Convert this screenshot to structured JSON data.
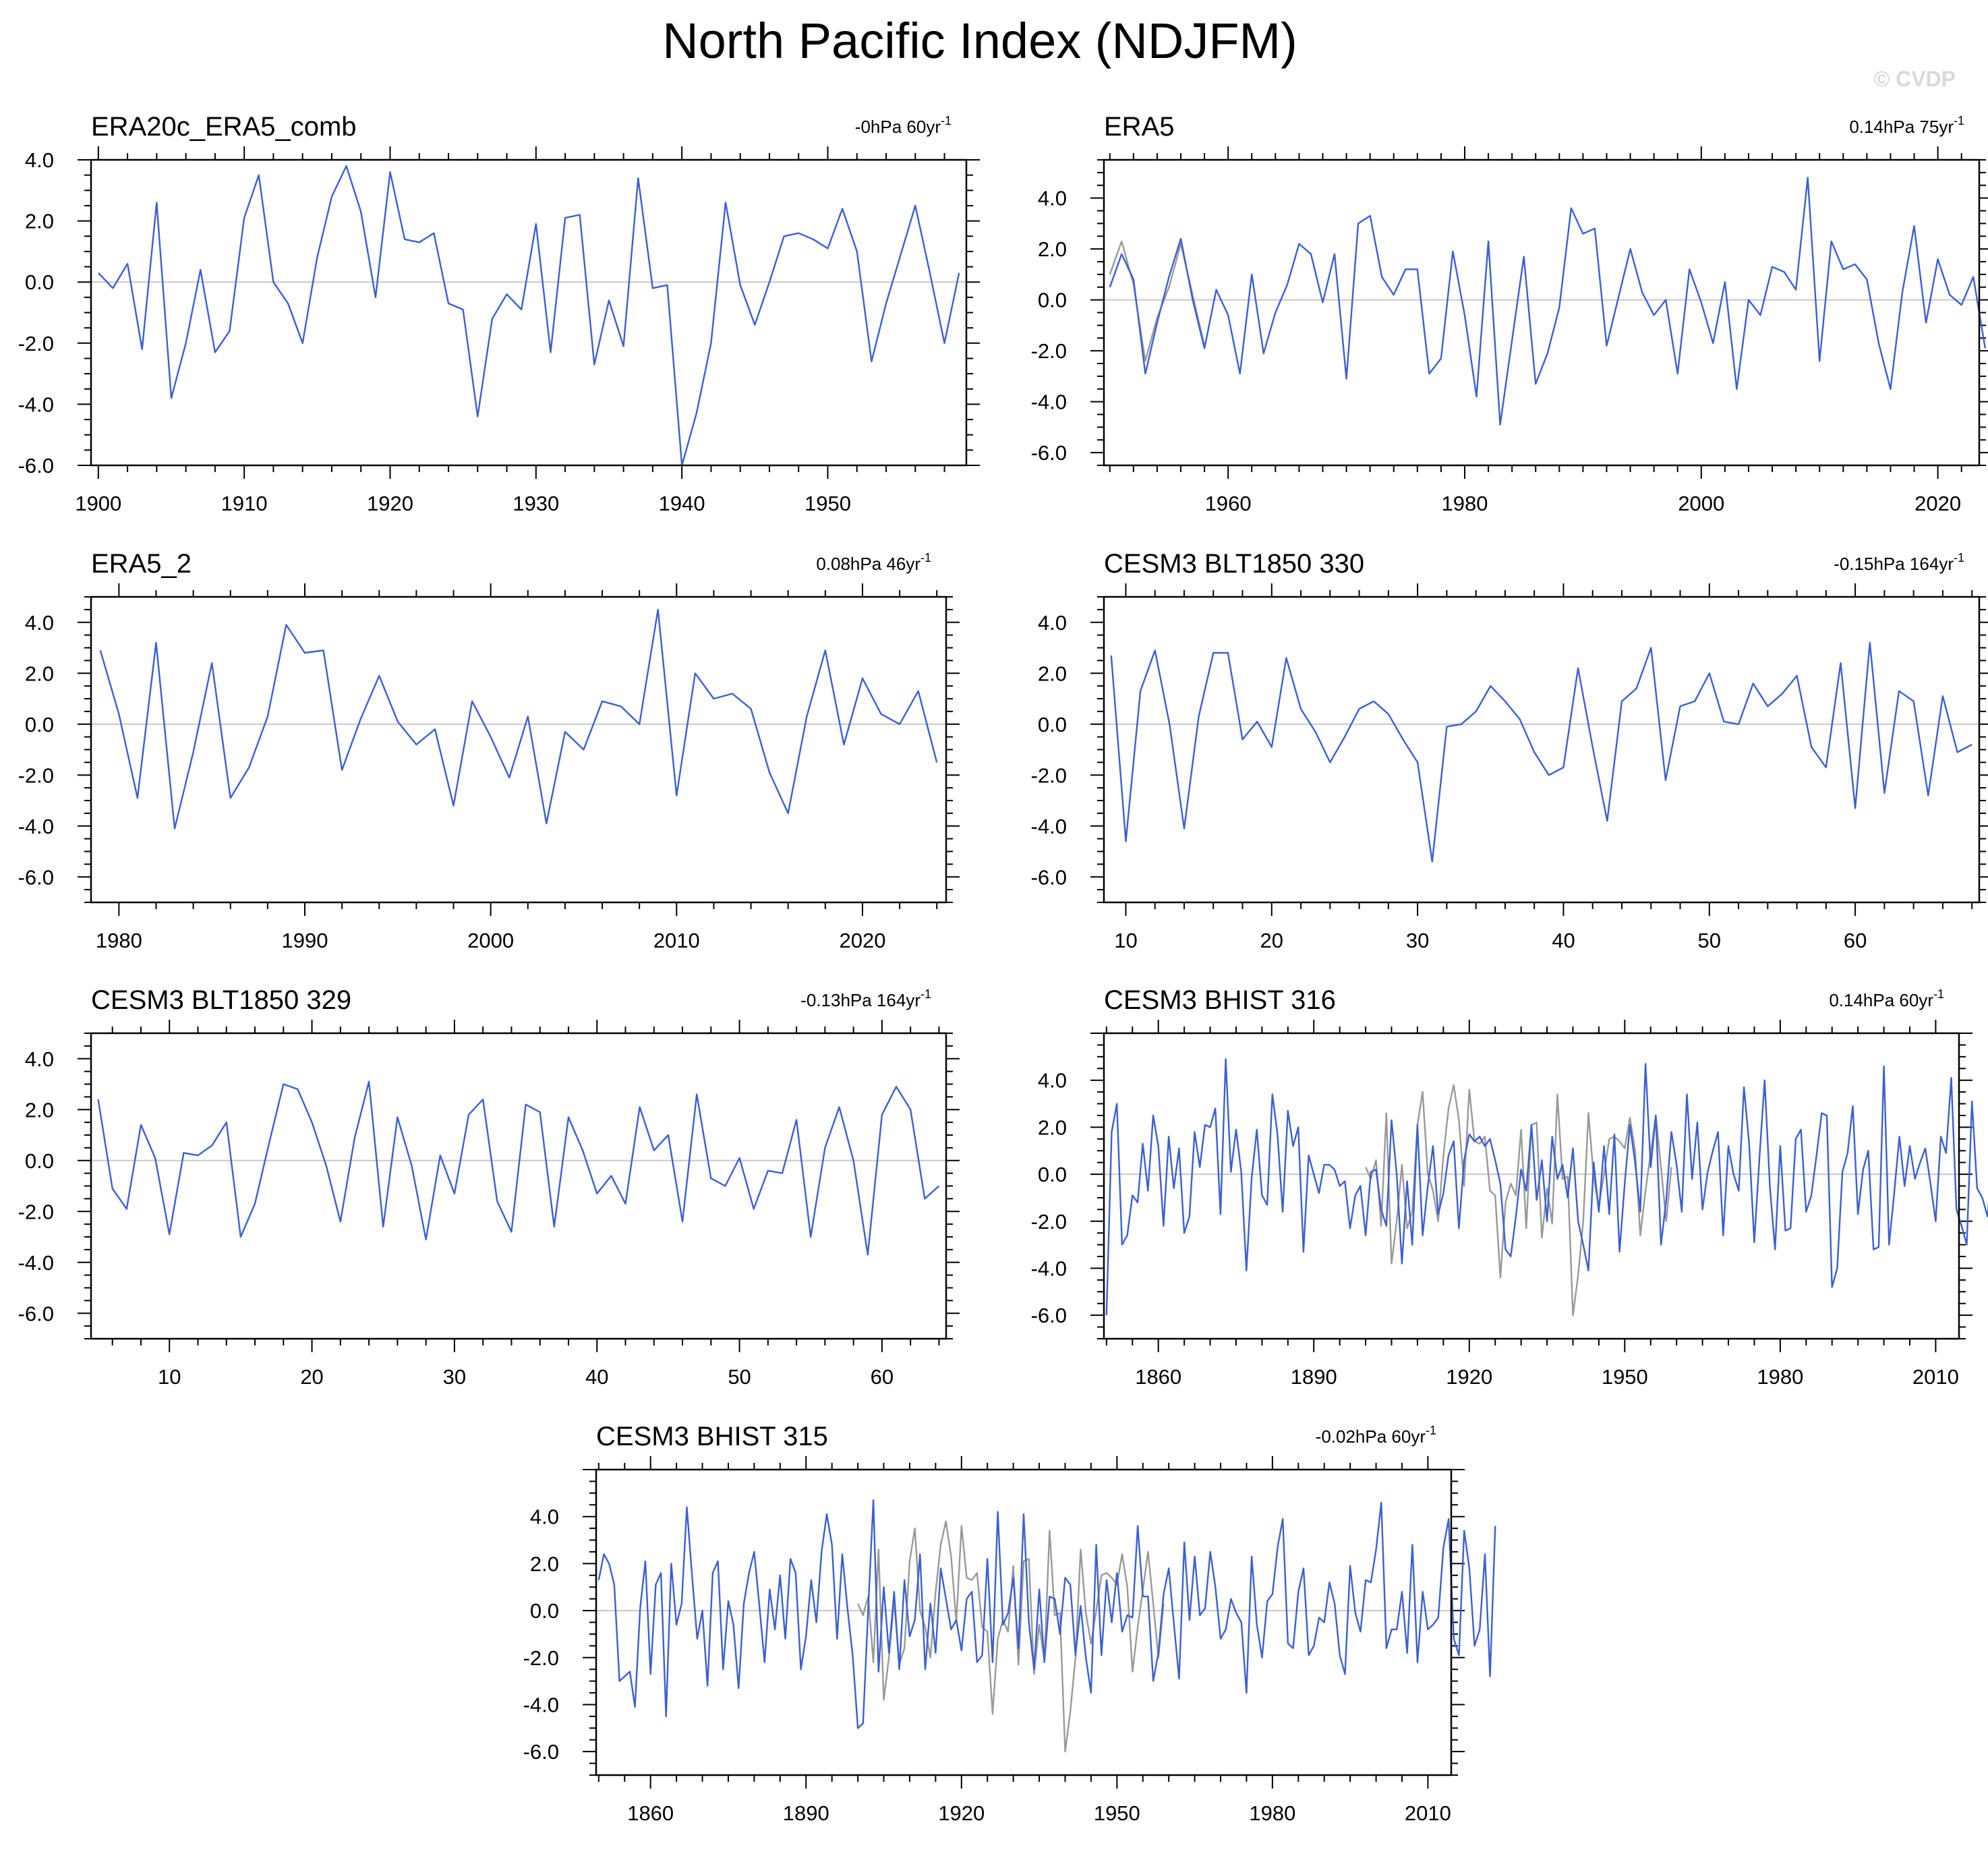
{
  "title": "North Pacific Index (NDJFM)",
  "watermark": "© CVDP",
  "colors": {
    "primary": "#3c5fd2",
    "secondary": "#999999",
    "zero_line": "#c8c8c8",
    "frame": "#000000"
  },
  "chart_data": [
    {
      "type": "line",
      "title": "ERA20c_ERA5_comb",
      "trend": {
        "value": "-0hPa 60yr",
        "exp": "-1"
      },
      "xlim": [
        1899.5,
        1959.5
      ],
      "ylim": [
        -6,
        4
      ],
      "xticks": [
        1900,
        1910,
        1920,
        1930,
        1940,
        1950
      ],
      "yticks": [
        4,
        2,
        0,
        -2,
        -4,
        -6
      ],
      "yticklabels": [
        "4.0",
        "2.0",
        "0.0",
        "-2.0",
        "-4.0",
        "-6.0"
      ],
      "x_start": 1900,
      "series": [
        {
          "values": [
            0.3,
            -0.2,
            0.6,
            -2.2,
            2.6,
            -3.8,
            -2.0,
            0.4,
            -2.3,
            -1.6,
            2.1,
            3.5,
            0.0,
            -0.7,
            -2.0,
            0.8,
            2.8,
            3.8,
            2.3,
            -0.5,
            3.6,
            1.4,
            1.3,
            1.6,
            -0.7,
            -0.9,
            -4.4,
            -1.2,
            -0.4,
            -0.9,
            1.9,
            -2.3,
            2.1,
            2.2,
            -2.7,
            -0.6,
            -2.1,
            3.4,
            -0.2,
            -0.1,
            -6.0,
            -4.3,
            -2.0,
            2.6,
            -0.1,
            -1.4,
            0.0,
            1.5,
            1.6,
            1.4,
            1.1,
            2.4,
            1.0,
            -2.6,
            -0.7,
            0.9,
            2.5,
            0.3,
            -2.0,
            0.3
          ]
        }
      ]
    },
    {
      "type": "line",
      "title": "ERA5",
      "trend": {
        "value": "0.14hPa 75yr",
        "exp": "-1"
      },
      "xlim": [
        1949.5,
        2023.5
      ],
      "ylim": [
        -6.5,
        5.5
      ],
      "xticks": [
        1960,
        1980,
        2000,
        2020
      ],
      "yticks": [
        4,
        2,
        0,
        -2,
        -4,
        -6
      ],
      "yticklabels": [
        "4.0",
        "2.0",
        "0.0",
        "-2.0",
        "-4.0",
        "-6.0"
      ],
      "x_start": 1950,
      "series": [
        {
          "values": [
            0.5,
            1.8,
            0.8,
            -2.9,
            -0.9,
            0.9,
            2.4,
            0.0,
            -1.9,
            0.4,
            -0.6,
            -2.9,
            1.0,
            -2.1,
            -0.5,
            0.6,
            2.2,
            1.8,
            -0.1,
            1.8,
            -3.1,
            3.0,
            3.3,
            0.9,
            0.2,
            1.2,
            1.2,
            -2.9,
            -2.3,
            1.9,
            -0.6,
            -3.8,
            2.3,
            -4.9,
            -1.6,
            1.7,
            -3.3,
            -2.1,
            -0.3,
            3.6,
            2.6,
            2.8,
            -1.8,
            0.1,
            2.0,
            0.3,
            -0.6,
            0.0,
            -2.9,
            1.2,
            -0.1,
            -1.7,
            0.7,
            -3.5,
            0.0,
            -0.6,
            1.3,
            1.1,
            0.4,
            4.8,
            -2.4,
            2.3,
            1.2,
            1.4,
            0.8,
            -1.7,
            -3.5,
            0.3,
            2.9,
            -0.9,
            1.6,
            0.2,
            -0.2,
            0.9,
            -1.9
          ]
        },
        {
          "values": [
            1.0,
            2.3,
            0.6,
            -2.4,
            -0.7,
            0.5,
            2.2,
            0.2,
            -1.8
          ]
        }
      ]
    },
    {
      "type": "line",
      "title": "ERA5_2",
      "trend": {
        "value": "0.08hPa 46yr",
        "exp": "-1"
      },
      "xlim": [
        1978.5,
        2024.5
      ],
      "ylim": [
        -7,
        5
      ],
      "xticks": [
        1980,
        1990,
        2000,
        2010,
        2020
      ],
      "yticks": [
        4,
        2,
        0,
        -2,
        -4,
        -6
      ],
      "yticklabels": [
        "4.0",
        "2.0",
        "0.0",
        "-2.0",
        "-4.0",
        "-6.0"
      ],
      "x_start": 1979,
      "series": [
        {
          "values": [
            2.9,
            0.4,
            -2.9,
            3.2,
            -4.1,
            -1.1,
            2.4,
            -2.9,
            -1.7,
            0.3,
            3.9,
            2.8,
            2.9,
            -1.8,
            0.2,
            1.9,
            0.1,
            -0.8,
            -0.2,
            -3.2,
            0.9,
            -0.5,
            -2.1,
            0.3,
            -3.9,
            -0.3,
            -1.0,
            0.9,
            0.7,
            0.0,
            4.5,
            -2.8,
            2.0,
            1.0,
            1.2,
            0.6,
            -1.9,
            -3.5,
            0.3,
            2.9,
            -0.8,
            1.8,
            0.4,
            0.0,
            1.3,
            -1.5
          ]
        }
      ]
    },
    {
      "type": "line",
      "title": "CESM3 BLT1850 330",
      "trend": {
        "value": "-0.15hPa 164yr",
        "exp": "-1"
      },
      "xlim": [
        8.5,
        68.5
      ],
      "ylim": [
        -7,
        5
      ],
      "xticks": [
        10,
        20,
        30,
        40,
        50,
        60
      ],
      "yticks": [
        4,
        2,
        0,
        -2,
        -4,
        -6
      ],
      "yticklabels": [
        "4.0",
        "2.0",
        "0.0",
        "-2.0",
        "-4.0",
        "-6.0"
      ],
      "x_start": 9,
      "series": [
        {
          "values": [
            2.7,
            -4.6,
            1.3,
            2.9,
            0.0,
            -4.1,
            0.3,
            2.8,
            2.8,
            -0.6,
            0.1,
            -0.9,
            2.6,
            0.6,
            -0.3,
            -1.5,
            -0.5,
            0.6,
            0.9,
            0.4,
            -0.6,
            -1.5,
            -5.4,
            -0.1,
            0.0,
            0.5,
            1.5,
            0.9,
            0.2,
            -1.1,
            -2.0,
            -1.7,
            2.2,
            -0.9,
            -3.8,
            0.9,
            1.4,
            3.0,
            -2.2,
            0.7,
            0.9,
            2.0,
            0.1,
            0.0,
            1.6,
            0.7,
            1.2,
            1.9,
            -0.9,
            -1.7,
            2.4,
            -3.3,
            3.2,
            -2.7,
            1.3,
            0.9,
            -2.8,
            1.1,
            -1.1,
            -0.8
          ]
        }
      ]
    },
    {
      "type": "line",
      "title": "CESM3 BLT1850 329",
      "trend": {
        "value": "-0.13hPa 164yr",
        "exp": "-1"
      },
      "xlim": [
        4.5,
        64.5
      ],
      "ylim": [
        -7,
        5
      ],
      "xticks": [
        10,
        20,
        30,
        40,
        50,
        60
      ],
      "yticks": [
        4,
        2,
        0,
        -2,
        -4,
        -6
      ],
      "yticklabels": [
        "4.0",
        "2.0",
        "0.0",
        "-2.0",
        "-4.0",
        "-6.0"
      ],
      "x_start": 5,
      "series": [
        {
          "values": [
            2.4,
            -1.1,
            -1.9,
            1.4,
            0.1,
            -2.9,
            0.3,
            0.2,
            0.6,
            1.5,
            -3.0,
            -1.7,
            0.7,
            3.0,
            2.8,
            1.5,
            -0.2,
            -2.4,
            0.9,
            3.1,
            -2.6,
            1.7,
            -0.2,
            -3.1,
            0.2,
            -1.3,
            1.8,
            2.4,
            -1.6,
            -2.8,
            2.2,
            1.9,
            -2.6,
            1.7,
            0.4,
            -1.3,
            -0.6,
            -1.7,
            2.1,
            0.4,
            1.0,
            -2.4,
            2.6,
            -0.7,
            -1.0,
            0.1,
            -1.9,
            -0.4,
            -0.5,
            1.6,
            -3.0,
            0.5,
            2.1,
            0.0,
            -3.7,
            1.8,
            2.9,
            2.0,
            -1.5,
            -1.0
          ]
        }
      ]
    },
    {
      "type": "line",
      "title": "CESM3 BHIST 316",
      "trend": {
        "value": "0.14hPa 60yr",
        "exp": "-1"
      },
      "xlim": [
        1849.5,
        2014.5
      ],
      "ylim": [
        -7,
        6
      ],
      "xticks": [
        1860,
        1890,
        1920,
        1950,
        1980,
        2010
      ],
      "yticks": [
        4,
        2,
        0,
        -2,
        -4,
        -6
      ],
      "yticklabels": [
        "4.0",
        "2.0",
        "0.0",
        "-2.0",
        "-4.0",
        "-6.0"
      ],
      "x_start": 1850,
      "series": [
        {
          "values": [
            -6.0,
            1.8,
            3.0,
            -3.0,
            -2.6,
            -0.9,
            -1.2,
            1.3,
            -0.7,
            2.5,
            1.2,
            -2.2,
            1.6,
            -0.6,
            1.1,
            -2.5,
            -1.8,
            1.8,
            0.3,
            2.1,
            2.0,
            2.8,
            -1.7,
            4.9,
            0.1,
            1.9,
            0.1,
            -4.1,
            -0.2,
            1.9,
            -0.9,
            -1.3,
            3.4,
            1.7,
            -1.6,
            2.7,
            1.2,
            2.0,
            -3.3,
            0.8,
            0.0,
            -0.8,
            0.4,
            0.4,
            0.2,
            -0.5,
            -0.3,
            -2.3,
            -0.9,
            -0.5,
            -2.6,
            0.1,
            0.2,
            -1.5,
            -2.2,
            2.3,
            0.0,
            -3.8,
            -0.3,
            -3.0,
            2.1,
            -2.6,
            -0.5,
            1.2,
            -1.7,
            -0.8,
            0.8,
            1.4,
            -2.3,
            0.6,
            1.7,
            1.4,
            1.6,
            1.2,
            1.5,
            0.6,
            -0.4,
            -3.2,
            -3.5,
            -1.8,
            0.2,
            -0.7,
            2.1,
            -1.1,
            0.6,
            -2.0,
            1.6,
            -0.2,
            0.4,
            -1.0,
            1.1,
            -2.0,
            -3.0,
            -4.1,
            0.5,
            -1.6,
            1.2,
            -1.7,
            1.7,
            -3.3,
            -0.4,
            2.1,
            0.5,
            -1.6,
            4.7,
            0.3,
            2.5,
            -3.0,
            -1.1,
            1.8,
            0.4,
            -1.6,
            3.4,
            -0.2,
            2.2,
            -1.5,
            0.1,
            1.0,
            1.8,
            -2.6,
            1.2,
            0.0,
            -0.7,
            3.7,
            1.3,
            -2.9,
            0.7,
            4.0,
            -0.5,
            -3.2,
            1.2,
            -2.4,
            -2.3,
            1.5,
            1.9,
            -1.6,
            -0.9,
            0.8,
            2.6,
            2.5,
            -4.8,
            -4.0,
            0.1,
            0.9,
            2.9,
            -1.7,
            0.2,
            1.0,
            -3.2,
            -3.1,
            4.6,
            -3.0,
            -0.8,
            1.6,
            -0.5,
            1.2,
            -0.2,
            0.5,
            1.1,
            -0.4,
            -2.0,
            1.6,
            0.9,
            4.1,
            -1.5,
            -2.2,
            -3.0,
            3.1,
            -0.6,
            -1.0,
            -1.8,
            0.7
          ]
        },
        {
          "x_start": 1900,
          "values": [
            0.3,
            -0.2,
            0.6,
            -2.2,
            2.6,
            -3.8,
            -2.0,
            0.4,
            -2.3,
            -1.6,
            2.1,
            3.5,
            0.0,
            -0.7,
            -2.0,
            0.8,
            2.8,
            3.8,
            2.3,
            -0.5,
            3.6,
            1.4,
            1.3,
            1.6,
            -0.7,
            -0.9,
            -4.4,
            -1.2,
            -0.4,
            -0.9,
            1.9,
            -2.3,
            2.1,
            2.2,
            -2.7,
            -0.6,
            -2.1,
            3.4,
            -0.2,
            -0.1,
            -6.0,
            -4.3,
            -2.0,
            2.6,
            -0.1,
            -1.4,
            0.0,
            1.5,
            1.6,
            1.4,
            1.1,
            2.4,
            1.0,
            -2.6,
            -0.7,
            0.9,
            2.5,
            0.3,
            -2.0,
            0.3
          ]
        }
      ]
    },
    {
      "type": "line",
      "title": "CESM3 BHIST 315",
      "trend": {
        "value": "-0.02hPa 60yr",
        "exp": "-1"
      },
      "xlim": [
        1849.5,
        2014.5
      ],
      "ylim": [
        -7,
        6
      ],
      "xticks": [
        1860,
        1890,
        1920,
        1950,
        1980,
        2010
      ],
      "yticks": [
        4,
        2,
        0,
        -2,
        -4,
        -6
      ],
      "yticklabels": [
        "4.0",
        "2.0",
        "0.0",
        "-2.0",
        "-4.0",
        "-6.0"
      ],
      "x_start": 1850,
      "series": [
        {
          "values": [
            1.3,
            2.4,
            2.0,
            1.1,
            -3.0,
            -2.8,
            -2.6,
            -4.1,
            0.1,
            2.1,
            -2.7,
            1.1,
            1.6,
            -4.5,
            2.0,
            -0.6,
            0.3,
            4.4,
            1.5,
            -1.2,
            0.0,
            -3.2,
            1.6,
            2.1,
            -2.5,
            0.4,
            -0.6,
            -3.3,
            0.3,
            1.6,
            2.5,
            0.2,
            -2.2,
            0.9,
            -0.8,
            1.5,
            -1.2,
            2.2,
            1.6,
            -2.5,
            -1.1,
            1.3,
            -0.5,
            2.5,
            4.1,
            2.8,
            -1.2,
            2.4,
            0.1,
            -1.9,
            -5.0,
            -4.8,
            0.1,
            4.7,
            -2.6,
            1.0,
            -1.8,
            0.8,
            -2.5,
            1.3,
            -1.1,
            -0.4,
            2.4,
            -2.5,
            0.3,
            -1.8,
            1.8,
            0.5,
            -0.8,
            -0.4,
            -1.7,
            0.5,
            0.8,
            -2.2,
            -1.9,
            2.2,
            -2.2,
            4.2,
            -0.6,
            -0.1,
            1.4,
            -1.6,
            4.1,
            -0.5,
            -2.5,
            0.9,
            -2.2,
            0.6,
            0.5,
            -1.0,
            1.4,
            1.1,
            -1.9,
            0.2,
            -2.0,
            -3.5,
            2.8,
            -1.9,
            1.3,
            -0.5,
            1.6,
            -0.9,
            -0.2,
            -0.3,
            3.6,
            0.6,
            0.6,
            -3.0,
            -1.8,
            0.7,
            1.8,
            -0.6,
            -2.9,
            2.9,
            -0.4,
            2.3,
            -0.2,
            0.1,
            2.5,
            1.0,
            -1.2,
            -0.8,
            0.5,
            -0.1,
            -0.5,
            -3.5,
            2.3,
            -0.6,
            -2.0,
            0.4,
            0.7,
            2.7,
            3.9,
            -1.4,
            -1.6,
            0.8,
            1.8,
            -1.9,
            -1.5,
            -0.3,
            -0.5,
            1.2,
            0.3,
            -1.9,
            -2.7,
            1.9,
            -0.1,
            -0.9,
            1.3,
            1.2,
            2.6,
            4.6,
            -1.6,
            -0.8,
            -0.8,
            0.8,
            -1.8,
            2.8,
            -2.2,
            0.8,
            -0.8,
            -0.6,
            -0.3,
            2.7,
            3.9,
            -1.2,
            -1.9,
            3.4,
            1.8,
            -1.5,
            -0.8,
            2.4,
            -2.8,
            3.6
          ]
        },
        {
          "x_start": 1900,
          "values": [
            0.3,
            -0.2,
            0.6,
            -2.2,
            2.6,
            -3.8,
            -2.0,
            0.4,
            -2.3,
            -1.6,
            2.1,
            3.5,
            0.0,
            -0.7,
            -2.0,
            0.8,
            2.8,
            3.8,
            2.3,
            -0.5,
            3.6,
            1.4,
            1.3,
            1.6,
            -0.7,
            -0.9,
            -4.4,
            -1.2,
            -0.4,
            -0.9,
            1.9,
            -2.3,
            2.1,
            2.2,
            -2.7,
            -0.6,
            -2.1,
            3.4,
            -0.2,
            -0.1,
            -6.0,
            -4.3,
            -2.0,
            2.6,
            -0.1,
            -1.4,
            0.0,
            1.5,
            1.6,
            1.4,
            1.1,
            2.4,
            1.0,
            -2.6,
            -0.7,
            0.9,
            2.5,
            0.3,
            -2.0,
            0.3
          ]
        }
      ]
    }
  ]
}
